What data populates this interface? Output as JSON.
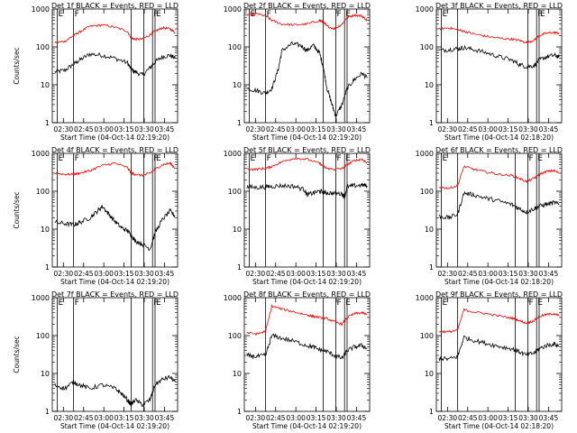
{
  "colors": {
    "events": "#000000",
    "lld": "#ff0000",
    "axes": "#000000",
    "background": "#ffffff"
  },
  "chart_data": [
    {
      "type": "line",
      "title": "Det 1f BLACK = Events, RED = LLD",
      "xlabel": "Start Time (04-Oct-14 02:19:20)",
      "ylabel": "Counts/sec",
      "yscale": "log",
      "ylim": [
        1,
        1000
      ],
      "xlim": [
        0,
        100
      ],
      "ytick_labels": [
        "1",
        "10",
        "100",
        "1000"
      ],
      "xtick_labels": [
        "02:30",
        "02:45",
        "03:00",
        "03:15",
        "03:30",
        "03:45"
      ],
      "markers": [
        {
          "x": 4,
          "label": "E"
        },
        {
          "x": 17,
          "label": "F"
        },
        {
          "x": 63,
          "label": ""
        },
        {
          "x": 73,
          "label": ""
        },
        {
          "x": 80,
          "label": "F"
        },
        {
          "x": 82,
          "label": "E"
        }
      ],
      "series": [
        {
          "name": "Events",
          "color": "black",
          "x": [
            2,
            10,
            17,
            22,
            30,
            40,
            50,
            60,
            63,
            66,
            72,
            78,
            82,
            88,
            94,
            98
          ],
          "y": [
            22,
            24,
            35,
            45,
            65,
            60,
            50,
            38,
            25,
            22,
            18,
            28,
            40,
            55,
            60,
            50
          ]
        },
        {
          "name": "LLD",
          "color": "red",
          "x": [
            2,
            10,
            17,
            22,
            30,
            40,
            50,
            60,
            63,
            66,
            72,
            78,
            82,
            88,
            94,
            98
          ],
          "y": [
            130,
            140,
            200,
            250,
            350,
            380,
            330,
            260,
            170,
            160,
            160,
            210,
            260,
            320,
            300,
            240
          ]
        }
      ]
    },
    {
      "type": "line",
      "title": "Det 2f BLACK = Events, RED = LLD",
      "xlabel": "Start Time (04-Oct-14 02:19:20)",
      "ylabel": "",
      "yscale": "log",
      "ylim": [
        1,
        1000
      ],
      "xlim": [
        0,
        100
      ],
      "ytick_labels": [
        "1",
        "10",
        "100",
        "1000"
      ],
      "xtick_labels": [
        "02:30",
        "02:45",
        "03:00",
        "03:15",
        "03:30",
        "03:45"
      ],
      "markers": [
        {
          "x": 4,
          "label": "E"
        },
        {
          "x": 17,
          "label": "F"
        },
        {
          "x": 63,
          "label": ""
        },
        {
          "x": 73,
          "label": "F"
        },
        {
          "x": 80,
          "label": "E"
        },
        {
          "x": 82,
          "label": ""
        }
      ],
      "series": [
        {
          "name": "Events",
          "color": "black",
          "x": [
            2,
            10,
            17,
            22,
            27,
            30,
            38,
            45,
            50,
            55,
            60,
            63,
            66,
            70,
            73,
            78,
            82,
            88,
            94,
            98
          ],
          "y": [
            8,
            7,
            6,
            8,
            25,
            80,
            120,
            110,
            80,
            110,
            70,
            30,
            8,
            3,
            1.5,
            3,
            8,
            14,
            20,
            15
          ]
        },
        {
          "name": "LLD",
          "color": "red",
          "x": [
            2,
            10,
            17,
            22,
            30,
            40,
            50,
            60,
            63,
            66,
            72,
            78,
            82,
            88,
            94,
            98
          ],
          "y": [
            700,
            750,
            650,
            500,
            400,
            380,
            400,
            500,
            450,
            350,
            300,
            400,
            600,
            700,
            650,
            500
          ]
        }
      ]
    },
    {
      "type": "line",
      "title": "Det 3f BLACK = Events, RED = LLD",
      "xlabel": "Start Time (04-Oct-14 02:18:20)",
      "ylabel": "",
      "yscale": "log",
      "ylim": [
        1,
        1000
      ],
      "xlim": [
        0,
        100
      ],
      "ytick_labels": [
        "1",
        "10",
        "100",
        "1000"
      ],
      "xtick_labels": [
        "02:30",
        "02:45",
        "03:00",
        "03:15",
        "03:30",
        "03:45"
      ],
      "markers": [
        {
          "x": 4,
          "label": "E"
        },
        {
          "x": 17,
          "label": ""
        },
        {
          "x": 73,
          "label": ""
        },
        {
          "x": 80,
          "label": "F"
        },
        {
          "x": 82,
          "label": "E"
        }
      ],
      "series": [
        {
          "name": "Events",
          "color": "black",
          "x": [
            2,
            10,
            17,
            22,
            30,
            40,
            50,
            60,
            66,
            72,
            78,
            82,
            88,
            94,
            98
          ],
          "y": [
            80,
            85,
            90,
            95,
            85,
            70,
            55,
            45,
            35,
            30,
            32,
            45,
            55,
            60,
            55
          ]
        },
        {
          "name": "LLD",
          "color": "red",
          "x": [
            2,
            10,
            17,
            22,
            30,
            40,
            50,
            60,
            66,
            72,
            78,
            82,
            88,
            94,
            98
          ],
          "y": [
            300,
            320,
            280,
            260,
            220,
            190,
            170,
            160,
            150,
            130,
            150,
            200,
            230,
            240,
            230
          ]
        }
      ]
    },
    {
      "type": "line",
      "title": "Det 4f BLACK = Events, RED = LLD",
      "xlabel": "Start Time (04-Oct-14 02:19:20)",
      "ylabel": "Counts/sec",
      "yscale": "log",
      "ylim": [
        1,
        1000
      ],
      "xlim": [
        0,
        100
      ],
      "ytick_labels": [
        "1",
        "10",
        "100",
        "1000"
      ],
      "xtick_labels": [
        "02:30",
        "02:45",
        "03:00",
        "03:15",
        "03:30",
        "03:45"
      ],
      "markers": [
        {
          "x": 4,
          "label": "E"
        },
        {
          "x": 17,
          "label": "F"
        },
        {
          "x": 63,
          "label": ""
        },
        {
          "x": 73,
          "label": ""
        },
        {
          "x": 80,
          "label": "F"
        },
        {
          "x": 82,
          "label": "E"
        }
      ],
      "series": [
        {
          "name": "Events",
          "color": "black",
          "x": [
            2,
            10,
            17,
            22,
            30,
            36,
            40,
            45,
            50,
            55,
            60,
            63,
            66,
            72,
            78,
            82,
            88,
            94,
            98
          ],
          "y": [
            15,
            14,
            13,
            15,
            20,
            30,
            40,
            25,
            16,
            11,
            9,
            7,
            5,
            4,
            3,
            8,
            18,
            30,
            22
          ]
        },
        {
          "name": "LLD",
          "color": "red",
          "x": [
            2,
            10,
            17,
            22,
            30,
            40,
            50,
            60,
            63,
            66,
            72,
            78,
            82,
            88,
            94,
            98
          ],
          "y": [
            300,
            280,
            280,
            300,
            350,
            480,
            550,
            420,
            300,
            280,
            260,
            300,
            380,
            500,
            550,
            400
          ]
        }
      ]
    },
    {
      "type": "line",
      "title": "Det 5f BLACK = Events, RED = LLD",
      "xlabel": "Start Time (04-Oct-14 02:19:20)",
      "ylabel": "",
      "yscale": "log",
      "ylim": [
        1,
        1000
      ],
      "xlim": [
        0,
        100
      ],
      "ytick_labels": [
        "1",
        "10",
        "100",
        "1000"
      ],
      "xtick_labels": [
        "02:30",
        "02:45",
        "03:00",
        "03:15",
        "03:30",
        "03:45"
      ],
      "markers": [
        {
          "x": 4,
          "label": "E"
        },
        {
          "x": 17,
          "label": "F"
        },
        {
          "x": 63,
          "label": ""
        },
        {
          "x": 73,
          "label": "F"
        },
        {
          "x": 80,
          "label": "E"
        },
        {
          "x": 82,
          "label": ""
        }
      ],
      "series": [
        {
          "name": "Events",
          "color": "black",
          "x": [
            2,
            10,
            17,
            22,
            30,
            40,
            48,
            50,
            55,
            60,
            63,
            66,
            72,
            78,
            80,
            82,
            88,
            94,
            98
          ],
          "y": [
            130,
            125,
            130,
            135,
            140,
            135,
            110,
            80,
            90,
            100,
            95,
            90,
            88,
            85,
            70,
            130,
            140,
            145,
            140
          ]
        },
        {
          "name": "LLD",
          "color": "red",
          "x": [
            2,
            10,
            17,
            22,
            30,
            40,
            50,
            60,
            63,
            66,
            72,
            78,
            82,
            88,
            94,
            98
          ],
          "y": [
            380,
            380,
            400,
            450,
            600,
            750,
            700,
            550,
            450,
            400,
            380,
            400,
            500,
            650,
            700,
            550
          ]
        }
      ]
    },
    {
      "type": "line",
      "title": "Det 6f BLACK = Events, RED = LLD",
      "xlabel": "Start Time (04-Oct-14 02:18:20)",
      "ylabel": "",
      "yscale": "log",
      "ylim": [
        1,
        1000
      ],
      "xlim": [
        0,
        100
      ],
      "ytick_labels": [
        "1",
        "10",
        "100",
        "1000"
      ],
      "xtick_labels": [
        "02:30",
        "02:45",
        "03:00",
        "03:15",
        "03:30",
        "03:45"
      ],
      "markers": [
        {
          "x": 4,
          "label": "E"
        },
        {
          "x": 17,
          "label": ""
        },
        {
          "x": 63,
          "label": ""
        },
        {
          "x": 73,
          "label": "F"
        },
        {
          "x": 80,
          "label": "E"
        },
        {
          "x": 82,
          "label": ""
        }
      ],
      "series": [
        {
          "name": "Events",
          "color": "black",
          "x": [
            2,
            10,
            17,
            22,
            30,
            40,
            50,
            60,
            66,
            72,
            78,
            82,
            88,
            94,
            98
          ],
          "y": [
            22,
            20,
            25,
            90,
            80,
            65,
            55,
            45,
            35,
            28,
            35,
            40,
            45,
            50,
            45
          ]
        },
        {
          "name": "LLD",
          "color": "red",
          "x": [
            2,
            10,
            17,
            22,
            30,
            40,
            50,
            60,
            66,
            72,
            78,
            82,
            88,
            94,
            98
          ],
          "y": [
            130,
            120,
            140,
            450,
            380,
            320,
            280,
            260,
            220,
            180,
            220,
            280,
            330,
            350,
            300
          ]
        }
      ]
    },
    {
      "type": "line",
      "title": "Det 7f BLACK = Events, RED = LLD",
      "xlabel": "Start Time (04-Oct-14 02:19:20)",
      "ylabel": "Counts/sec",
      "yscale": "log",
      "ylim": [
        1,
        1000
      ],
      "xlim": [
        0,
        100
      ],
      "ytick_labels": [
        "1",
        "10",
        "100",
        "1000"
      ],
      "xtick_labels": [
        "02:30",
        "02:45",
        "03:00",
        "03:15",
        "03:30",
        "03:45"
      ],
      "markers": [
        {
          "x": 4,
          "label": "E"
        },
        {
          "x": 17,
          "label": "F"
        },
        {
          "x": 63,
          "label": ""
        },
        {
          "x": 73,
          "label": ""
        },
        {
          "x": 80,
          "label": "F"
        },
        {
          "x": 82,
          "label": "E"
        }
      ],
      "series": [
        {
          "name": "Events",
          "color": "black",
          "x": [
            2,
            10,
            17,
            22,
            30,
            40,
            50,
            55,
            60,
            63,
            66,
            72,
            78,
            82,
            88,
            94,
            98
          ],
          "y": [
            5,
            4,
            6,
            5,
            4,
            5,
            4,
            3,
            2,
            1.5,
            2,
            1.5,
            2,
            5,
            7,
            8,
            6
          ]
        },
        {
          "name": "LLD",
          "color": "red",
          "x": [],
          "y": []
        }
      ]
    },
    {
      "type": "line",
      "title": "Det 8f BLACK = Events, RED = LLD",
      "xlabel": "Start Time (04-Oct-14 02:19:20)",
      "ylabel": "",
      "yscale": "log",
      "ylim": [
        1,
        1000
      ],
      "xlim": [
        0,
        100
      ],
      "ytick_labels": [
        "1",
        "10",
        "100",
        "1000"
      ],
      "xtick_labels": [
        "02:30",
        "02:45",
        "03:00",
        "03:15",
        "03:30",
        "03:45"
      ],
      "markers": [
        {
          "x": 17,
          "label": ""
        },
        {
          "x": 63,
          "label": ""
        },
        {
          "x": 73,
          "label": "F"
        },
        {
          "x": 80,
          "label": "E"
        },
        {
          "x": 82,
          "label": ""
        }
      ],
      "series": [
        {
          "name": "Events",
          "color": "black",
          "x": [
            2,
            10,
            17,
            22,
            30,
            40,
            50,
            55,
            60,
            66,
            72,
            78,
            82,
            88,
            94,
            98
          ],
          "y": [
            30,
            28,
            30,
            100,
            85,
            70,
            55,
            50,
            42,
            38,
            30,
            25,
            40,
            50,
            55,
            45
          ]
        },
        {
          "name": "LLD",
          "color": "red",
          "x": [
            2,
            10,
            17,
            22,
            30,
            40,
            50,
            55,
            60,
            66,
            72,
            78,
            82,
            88,
            94,
            98
          ],
          "y": [
            120,
            110,
            130,
            600,
            500,
            420,
            350,
            320,
            300,
            280,
            230,
            200,
            300,
            380,
            400,
            350
          ]
        }
      ]
    },
    {
      "type": "line",
      "title": "Det 9f BLACK = Events, RED = LLD",
      "xlabel": "Start Time (04-Oct-14 02:18:20)",
      "ylabel": "",
      "yscale": "log",
      "ylim": [
        1,
        1000
      ],
      "xlim": [
        0,
        100
      ],
      "ytick_labels": [
        "1",
        "10",
        "100",
        "1000"
      ],
      "xtick_labels": [
        "02:30",
        "02:45",
        "03:00",
        "03:15",
        "03:30",
        "03:45"
      ],
      "markers": [
        {
          "x": 4,
          "label": "E"
        },
        {
          "x": 17,
          "label": ""
        },
        {
          "x": 63,
          "label": ""
        },
        {
          "x": 73,
          "label": "F"
        },
        {
          "x": 80,
          "label": "E"
        },
        {
          "x": 82,
          "label": ""
        }
      ],
      "series": [
        {
          "name": "Events",
          "color": "black",
          "x": [
            2,
            10,
            17,
            22,
            30,
            40,
            50,
            60,
            66,
            72,
            78,
            82,
            88,
            94,
            98
          ],
          "y": [
            25,
            24,
            28,
            90,
            75,
            62,
            52,
            45,
            38,
            30,
            35,
            45,
            55,
            60,
            52
          ]
        },
        {
          "name": "LLD",
          "color": "red",
          "x": [
            2,
            10,
            17,
            22,
            30,
            40,
            50,
            60,
            66,
            72,
            78,
            82,
            88,
            94,
            98
          ],
          "y": [
            130,
            125,
            140,
            480,
            420,
            380,
            330,
            290,
            250,
            210,
            250,
            320,
            360,
            380,
            330
          ]
        }
      ]
    }
  ]
}
